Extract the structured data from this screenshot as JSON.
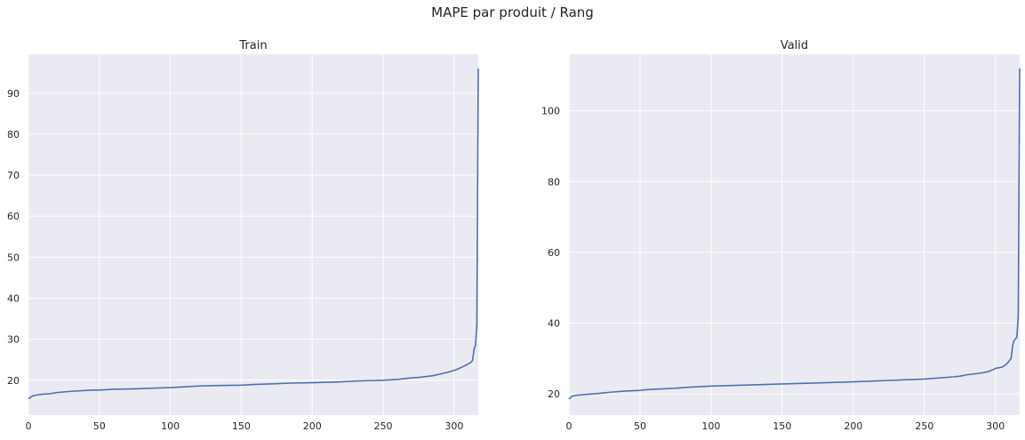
{
  "figure": {
    "title": "MAPE par produit / Rang"
  },
  "colors": {
    "line": "#4c72b0",
    "plot_background": "#eaeaf2",
    "grid": "#ffffff"
  },
  "chart_data": [
    {
      "type": "line",
      "title": "Train",
      "xlabel": "",
      "ylabel": "",
      "xlim": [
        0,
        317
      ],
      "ylim": [
        11.5,
        99.5
      ],
      "xticks": [
        0,
        50,
        100,
        150,
        200,
        250,
        300
      ],
      "yticks": [
        20,
        30,
        40,
        50,
        60,
        70,
        80,
        90
      ],
      "grid": true,
      "series": [
        {
          "x": [
            0,
            3,
            6,
            10,
            15,
            20,
            30,
            40,
            45,
            50,
            60,
            75,
            90,
            100,
            110,
            120,
            130,
            150,
            160,
            170,
            185,
            200,
            210,
            220,
            230,
            240,
            250,
            255,
            260,
            265,
            270,
            275,
            280,
            285,
            290,
            295,
            300,
            303,
            306,
            309,
            312,
            313,
            314,
            315,
            316,
            317
          ],
          "y": [
            15.5,
            16.2,
            16.4,
            16.6,
            16.7,
            17.0,
            17.3,
            17.5,
            17.6,
            17.6,
            17.8,
            17.9,
            18.1,
            18.2,
            18.4,
            18.6,
            18.7,
            18.8,
            19.0,
            19.1,
            19.3,
            19.4,
            19.5,
            19.6,
            19.8,
            19.9,
            20.0,
            20.1,
            20.2,
            20.4,
            20.6,
            20.7,
            20.9,
            21.1,
            21.5,
            21.9,
            22.4,
            22.8,
            23.3,
            23.8,
            24.4,
            24.9,
            27.5,
            28.5,
            33.5,
            96.0
          ]
        }
      ]
    },
    {
      "type": "line",
      "title": "Valid",
      "xlabel": "",
      "ylabel": "",
      "xlim": [
        0,
        317
      ],
      "ylim": [
        14,
        116
      ],
      "xticks": [
        0,
        50,
        100,
        150,
        200,
        250,
        300
      ],
      "yticks": [
        20,
        40,
        60,
        80,
        100
      ],
      "grid": true,
      "series": [
        {
          "x": [
            0,
            2,
            5,
            10,
            20,
            25,
            30,
            40,
            50,
            55,
            60,
            75,
            85,
            100,
            125,
            150,
            175,
            200,
            225,
            250,
            270,
            275,
            280,
            290,
            295,
            298,
            300,
            305,
            308,
            310,
            311,
            312,
            313,
            314,
            315,
            316,
            317
          ],
          "y": [
            18.5,
            19.3,
            19.6,
            19.8,
            20.1,
            20.3,
            20.5,
            20.8,
            21.0,
            21.2,
            21.3,
            21.6,
            21.9,
            22.2,
            22.5,
            22.8,
            23.1,
            23.4,
            23.8,
            24.2,
            24.8,
            25.0,
            25.4,
            25.9,
            26.3,
            26.8,
            27.2,
            27.6,
            28.5,
            29.5,
            30.0,
            33.5,
            35.0,
            35.5,
            36.0,
            42.0,
            112.0
          ]
        }
      ]
    }
  ]
}
